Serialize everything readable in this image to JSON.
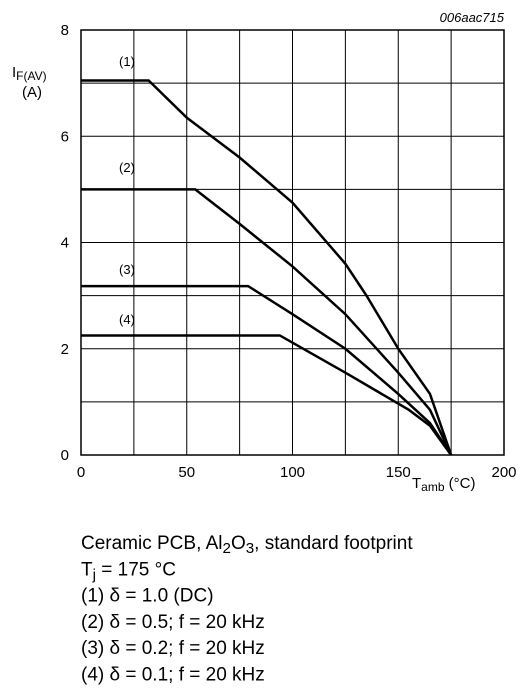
{
  "chart_data": {
    "type": "line",
    "code": "006aac715",
    "y_label": {
      "parts": [
        "I",
        "F(AV)"
      ],
      "unit": "(A)"
    },
    "x_label": {
      "parts": [
        "T",
        "amb",
        " (°C)"
      ]
    },
    "xlim": [
      0,
      200
    ],
    "ylim": [
      0,
      8
    ],
    "xticks": [
      0,
      50,
      100,
      150,
      200
    ],
    "yticks": [
      0,
      2,
      4,
      6,
      8
    ],
    "x_minor_ticks": [
      25,
      75,
      125,
      175
    ],
    "y_minor_ticks": [
      1,
      3,
      5,
      7
    ],
    "grid": true,
    "series": [
      {
        "name": "(1)",
        "color": "#000000",
        "x": [
          0,
          32,
          50,
          75,
          100,
          125,
          135,
          150,
          165,
          175
        ],
        "values": [
          7.05,
          7.05,
          6.35,
          5.6,
          4.75,
          3.6,
          3.0,
          2.0,
          1.15,
          0
        ]
      },
      {
        "name": "(2)",
        "color": "#000000",
        "x": [
          0,
          54,
          75,
          100,
          125,
          150,
          165,
          175
        ],
        "values": [
          5.0,
          5.0,
          4.35,
          3.55,
          2.65,
          1.55,
          0.85,
          0
        ]
      },
      {
        "name": "(3)",
        "color": "#000000",
        "x": [
          0,
          79,
          100,
          125,
          150,
          165,
          175
        ],
        "values": [
          3.18,
          3.18,
          2.65,
          2.0,
          1.15,
          0.6,
          0
        ]
      },
      {
        "name": "(4)",
        "color": "#000000",
        "x": [
          0,
          94,
          125,
          155,
          165,
          175
        ],
        "values": [
          2.25,
          2.25,
          1.55,
          0.85,
          0.55,
          0
        ]
      }
    ],
    "notes": [
      [
        "Ceramic PCB, Al",
        "2",
        "O",
        "3",
        ", standard footprint"
      ],
      [
        "T",
        "j",
        " = 175 °C"
      ],
      [
        "(1) δ = 1.0 (DC)"
      ],
      [
        "(2) δ = 0.5; f = 20 kHz"
      ],
      [
        "(3) δ = 0.2; f = 20 kHz"
      ],
      [
        "(4) δ = 0.1; f = 20 kHz"
      ]
    ]
  }
}
